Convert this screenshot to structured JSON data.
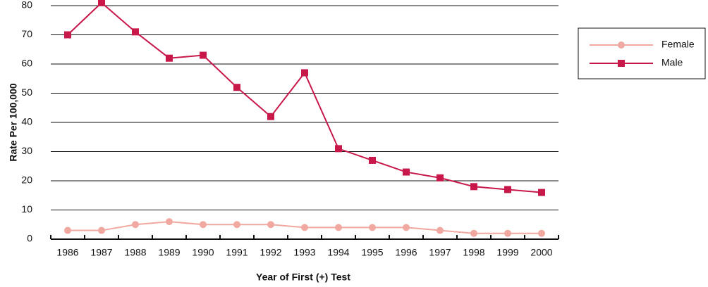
{
  "chart_data": {
    "type": "line",
    "x_label": "Year of First (+) Test",
    "y_label": "Rate Per 100,000",
    "categories": [
      "1986",
      "1987",
      "1988",
      "1989",
      "1990",
      "1991",
      "1992",
      "1993",
      "1994",
      "1995",
      "1996",
      "1997",
      "1998",
      "1999",
      "2000"
    ],
    "series": [
      {
        "name": "Female",
        "color": "#f0a8a0",
        "marker": "circle",
        "values": [
          3,
          3,
          5,
          6,
          5,
          5,
          5,
          4,
          4,
          4,
          4,
          3,
          2,
          2,
          2
        ]
      },
      {
        "name": "Male",
        "color": "#c8184a",
        "marker": "square",
        "values": [
          70,
          81,
          71,
          62,
          63,
          52,
          42,
          57,
          31,
          27,
          23,
          21,
          18,
          17,
          16
        ]
      }
    ],
    "ylim": [
      0,
      80
    ],
    "yticks": [
      0,
      10,
      20,
      30,
      40,
      50,
      60,
      70,
      80
    ],
    "grid": true,
    "legend": "right"
  }
}
